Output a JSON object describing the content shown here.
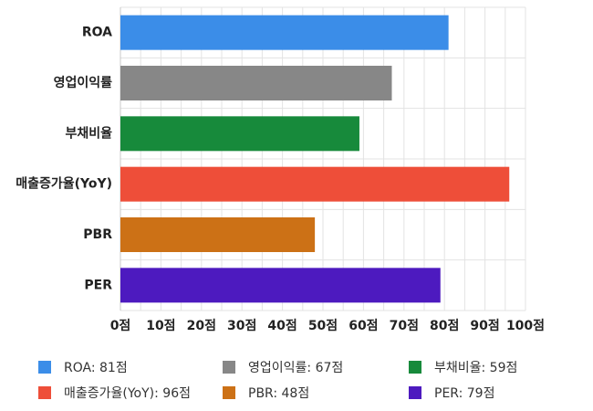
{
  "chart_data": {
    "type": "bar",
    "orientation": "horizontal",
    "categories": [
      "ROA",
      "영업이익률",
      "부채비율",
      "매출증가율(YoY)",
      "PBR",
      "PER"
    ],
    "values": [
      81,
      67,
      59,
      96,
      48,
      79
    ],
    "colors": [
      "#3b8de8",
      "#878787",
      "#178a3b",
      "#ee4e39",
      "#cc7116",
      "#4d1abf"
    ],
    "xlim": [
      0,
      100
    ],
    "x_ticks": [
      0,
      10,
      20,
      30,
      40,
      50,
      60,
      70,
      80,
      90,
      100
    ],
    "x_tick_labels": [
      "0점",
      "10점",
      "20점",
      "30점",
      "40점",
      "50점",
      "60점",
      "70점",
      "80점",
      "90점",
      "100점"
    ],
    "grid": true,
    "legend_position": "bottom",
    "legend": [
      "ROA: 81점",
      "영업이익률: 67점",
      "부채비율: 59점",
      "매출증가율(YoY): 96점",
      "PBR: 48점",
      "PER: 79점"
    ]
  }
}
